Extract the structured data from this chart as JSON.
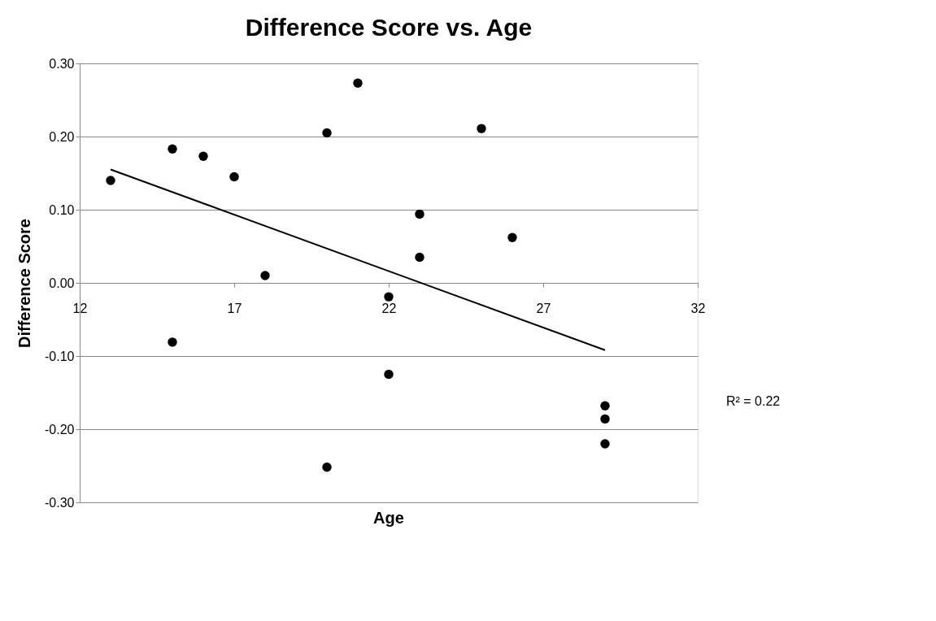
{
  "chart_data": {
    "type": "scatter",
    "title": "Difference Score vs. Age",
    "xlabel": "Age",
    "ylabel": "Difference Score",
    "x": [
      13,
      15,
      16,
      17,
      18,
      20,
      21,
      25,
      23,
      23,
      26,
      22,
      15,
      20,
      22,
      29,
      29,
      29
    ],
    "series": [
      {
        "color": "#000000",
        "marker": "circle",
        "values": [
          0.14,
          0.183,
          0.173,
          0.145,
          0.01,
          0.205,
          0.273,
          0.211,
          0.094,
          0.035,
          0.062,
          -0.019,
          -0.081,
          -0.252,
          -0.125,
          -0.168,
          -0.186,
          -0.22
        ]
      },
      {
        "type": "line",
        "color": "#000000",
        "x": [
          13,
          29
        ],
        "values": [
          0.155,
          -0.092
        ]
      }
    ],
    "annotations": [
      "R² = 0.22"
    ],
    "xlim": [
      12,
      32
    ],
    "xticks": [
      12,
      17,
      22,
      27,
      32
    ],
    "ylim": [
      -0.3,
      0.3
    ],
    "yticks": [
      {
        "value": -0.3,
        "label": "-0.30"
      },
      {
        "value": -0.2,
        "label": "-0.20"
      },
      {
        "value": -0.1,
        "label": "-0.10"
      },
      {
        "value": 0.0,
        "label": "0.00"
      },
      {
        "value": 0.1,
        "label": "0.10"
      },
      {
        "value": 0.2,
        "label": "0.20"
      },
      {
        "value": 0.3,
        "label": "0.30"
      }
    ],
    "grid": "y"
  }
}
